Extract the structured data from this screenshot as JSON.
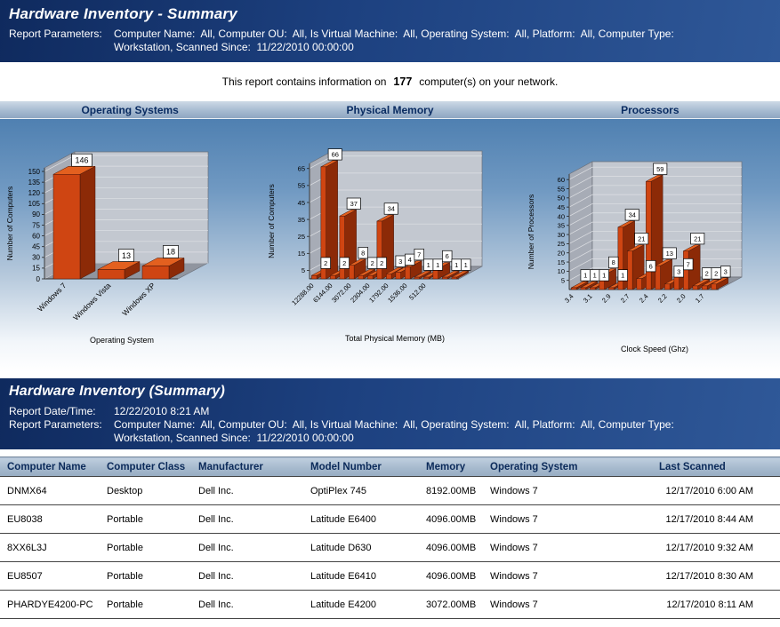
{
  "header": {
    "title": "Hardware Inventory - Summary",
    "params_label": "Report Parameters:",
    "params_line1": "Computer Name:  All, Computer OU:  All, Is Virtual Machine:  All, Operating System:  All, Platform:  All, Computer Type:",
    "params_line2": "Workstation, Scanned Since:  11/22/2010 00:00:00"
  },
  "summary": {
    "prefix": "This report contains information on",
    "count": "177",
    "suffix": "computer(s) on your network."
  },
  "chart_data": [
    {
      "type": "bar",
      "title": "Operating Systems",
      "xlabel": "Operating System",
      "ylabel": "Number of Computers",
      "categories": [
        "Windows 7",
        "Windows Vista",
        "Windows XP"
      ],
      "values": [
        146,
        13,
        18
      ],
      "yticks": [
        0,
        15,
        30,
        45,
        60,
        75,
        90,
        105,
        120,
        135,
        150
      ],
      "ylim": [
        0,
        155
      ],
      "legend": "none",
      "grid": true
    },
    {
      "type": "bar",
      "title": "Physical Memory",
      "xlabel": "Total Physical Memory (MB)",
      "ylabel": "Number of Computers",
      "categories": [
        "12288.00",
        "",
        "6144.00",
        "",
        "3072.00",
        "",
        "2304.00",
        "",
        "1792.00",
        "",
        "1536.00",
        "",
        "512.00",
        "",
        "",
        ""
      ],
      "values": [
        2,
        66,
        2,
        37,
        8,
        2,
        2,
        34,
        3,
        4,
        7,
        1,
        1,
        6,
        1,
        1
      ],
      "yticks": [
        5,
        15,
        25,
        35,
        45,
        55,
        65
      ],
      "ylim": [
        0,
        68
      ],
      "legend": "none",
      "grid": true
    },
    {
      "type": "bar",
      "title": "Processors",
      "xlabel": "Clock Speed (Ghz)",
      "ylabel": "Number of Processors",
      "categories": [
        "3.4",
        "",
        "3.1",
        "",
        "2.9",
        "",
        "2.7",
        "",
        "2.4",
        "",
        "2.2",
        "",
        "2.0",
        "",
        "1.7",
        ""
      ],
      "values": [
        1,
        1,
        1,
        8,
        1,
        34,
        21,
        6,
        59,
        13,
        3,
        7,
        21,
        2,
        2,
        3
      ],
      "yticks": [
        5,
        10,
        15,
        20,
        25,
        30,
        35,
        40,
        45,
        50,
        55,
        60
      ],
      "ylim": [
        0,
        63
      ],
      "legend": "none",
      "grid": true
    }
  ],
  "table_section": {
    "title": "Hardware Inventory (Summary)",
    "date_label": "Report Date/Time:",
    "date_value": "12/22/2010 8:21 AM",
    "params_label": "Report Parameters:",
    "params_line1": "Computer Name:  All, Computer OU:  All, Is Virtual Machine:  All, Operating System:  All, Platform:  All, Computer Type:",
    "params_line2": "Workstation, Scanned Since:  11/22/2010 00:00:00"
  },
  "table": {
    "columns": [
      "Computer Name",
      "Computer Class",
      "Manufacturer",
      "Model Number",
      "Memory",
      "Operating System",
      "Last Scanned"
    ],
    "rows": [
      [
        "DNMX64",
        "Desktop",
        "Dell Inc.",
        "OptiPlex 745",
        "8192.00MB",
        "Windows 7",
        "12/17/2010 6:00 AM"
      ],
      [
        "EU8038",
        "Portable",
        "Dell Inc.",
        "Latitude E6400",
        "4096.00MB",
        "Windows 7",
        "12/17/2010 8:44 AM"
      ],
      [
        "8XX6L3J",
        "Portable",
        "Dell Inc.",
        "Latitude D630",
        "4096.00MB",
        "Windows 7",
        "12/17/2010 9:32 AM"
      ],
      [
        "EU8507",
        "Portable",
        "Dell Inc.",
        "Latitude E6410",
        "4096.00MB",
        "Windows 7",
        "12/17/2010 8:30 AM"
      ],
      [
        "PHARDYE4200-PC",
        "Portable",
        "Dell Inc.",
        "Latitude E4200",
        "3072.00MB",
        "Windows 7",
        "12/17/2010 8:11 AM"
      ]
    ]
  },
  "colors": {
    "band_navy": "#1d4180",
    "band_text": "#ffffff",
    "chart_title_text": "#0a2c62",
    "bar_front": "#cf4512",
    "bar_side": "#8c2a07",
    "bar_top": "#e3601f",
    "table_header_bg": "#a4b8cc",
    "table_header_text": "#0b2a5a"
  }
}
